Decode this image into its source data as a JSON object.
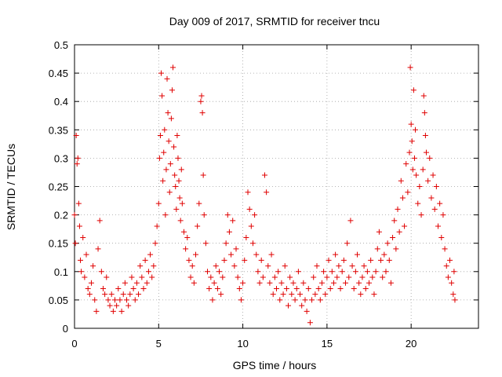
{
  "chart_data": {
    "type": "scatter",
    "title": "Day 009 of 2017, SRMTID for receiver tncu",
    "xlabel": "GPS time / hours",
    "ylabel": "SRMTID / TECUs",
    "xlim": [
      0,
      24
    ],
    "ylim": [
      0,
      0.5
    ],
    "xticks": [
      0,
      5,
      10,
      15,
      20
    ],
    "xtick_labels": [
      "0",
      "5",
      "10",
      "15",
      "20"
    ],
    "yticks": [
      0,
      0.05,
      0.1,
      0.15,
      0.2,
      0.25,
      0.3,
      0.35,
      0.4,
      0.45,
      0.5
    ],
    "ytick_labels": [
      "0",
      "0.05",
      "0.1",
      "0.15",
      "0.2",
      "0.25",
      "0.3",
      "0.35",
      "0.4",
      "0.45",
      "0.5"
    ],
    "grid": true,
    "marker": "+",
    "series": [
      {
        "name": "SRMTID",
        "color": "#e00000",
        "points": [
          [
            0.0,
            0.2
          ],
          [
            0.05,
            0.15
          ],
          [
            0.1,
            0.34
          ],
          [
            0.15,
            0.29
          ],
          [
            0.2,
            0.3
          ],
          [
            0.25,
            0.22
          ],
          [
            0.3,
            0.18
          ],
          [
            0.35,
            0.12
          ],
          [
            0.4,
            0.1
          ],
          [
            0.5,
            0.16
          ],
          [
            0.6,
            0.09
          ],
          [
            0.7,
            0.13
          ],
          [
            0.8,
            0.07
          ],
          [
            0.9,
            0.06
          ],
          [
            1.0,
            0.08
          ],
          [
            1.1,
            0.11
          ],
          [
            1.2,
            0.05
          ],
          [
            1.3,
            0.03
          ],
          [
            1.4,
            0.14
          ],
          [
            1.5,
            0.19
          ],
          [
            1.6,
            0.1
          ],
          [
            1.7,
            0.07
          ],
          [
            1.8,
            0.06
          ],
          [
            1.9,
            0.09
          ],
          [
            2.0,
            0.05
          ],
          [
            2.1,
            0.04
          ],
          [
            2.2,
            0.06
          ],
          [
            2.3,
            0.03
          ],
          [
            2.4,
            0.05
          ],
          [
            2.5,
            0.04
          ],
          [
            2.6,
            0.07
          ],
          [
            2.7,
            0.05
          ],
          [
            2.8,
            0.03
          ],
          [
            2.9,
            0.06
          ],
          [
            3.0,
            0.08
          ],
          [
            3.1,
            0.05
          ],
          [
            3.2,
            0.04
          ],
          [
            3.3,
            0.06
          ],
          [
            3.4,
            0.09
          ],
          [
            3.5,
            0.07
          ],
          [
            3.6,
            0.05
          ],
          [
            3.7,
            0.08
          ],
          [
            3.8,
            0.06
          ],
          [
            3.9,
            0.11
          ],
          [
            4.0,
            0.09
          ],
          [
            4.1,
            0.07
          ],
          [
            4.2,
            0.12
          ],
          [
            4.3,
            0.08
          ],
          [
            4.4,
            0.1
          ],
          [
            4.5,
            0.13
          ],
          [
            4.6,
            0.09
          ],
          [
            4.7,
            0.11
          ],
          [
            4.8,
            0.15
          ],
          [
            4.9,
            0.18
          ],
          [
            5.0,
            0.22
          ],
          [
            5.05,
            0.3
          ],
          [
            5.1,
            0.34
          ],
          [
            5.15,
            0.45
          ],
          [
            5.2,
            0.41
          ],
          [
            5.25,
            0.26
          ],
          [
            5.3,
            0.31
          ],
          [
            5.35,
            0.35
          ],
          [
            5.4,
            0.2
          ],
          [
            5.45,
            0.28
          ],
          [
            5.5,
            0.44
          ],
          [
            5.55,
            0.38
          ],
          [
            5.6,
            0.33
          ],
          [
            5.65,
            0.24
          ],
          [
            5.7,
            0.29
          ],
          [
            5.75,
            0.37
          ],
          [
            5.8,
            0.42
          ],
          [
            5.85,
            0.46
          ],
          [
            5.9,
            0.32
          ],
          [
            5.95,
            0.27
          ],
          [
            6.0,
            0.25
          ],
          [
            6.05,
            0.21
          ],
          [
            6.1,
            0.34
          ],
          [
            6.15,
            0.3
          ],
          [
            6.2,
            0.26
          ],
          [
            6.25,
            0.23
          ],
          [
            6.3,
            0.19
          ],
          [
            6.35,
            0.28
          ],
          [
            6.4,
            0.22
          ],
          [
            6.5,
            0.17
          ],
          [
            6.6,
            0.14
          ],
          [
            6.7,
            0.16
          ],
          [
            6.8,
            0.12
          ],
          [
            6.9,
            0.09
          ],
          [
            7.0,
            0.11
          ],
          [
            7.1,
            0.08
          ],
          [
            7.2,
            0.13
          ],
          [
            7.3,
            0.18
          ],
          [
            7.4,
            0.22
          ],
          [
            7.5,
            0.4
          ],
          [
            7.55,
            0.41
          ],
          [
            7.6,
            0.38
          ],
          [
            7.65,
            0.27
          ],
          [
            7.7,
            0.2
          ],
          [
            7.8,
            0.15
          ],
          [
            7.9,
            0.1
          ],
          [
            8.0,
            0.07
          ],
          [
            8.1,
            0.09
          ],
          [
            8.2,
            0.05
          ],
          [
            8.3,
            0.08
          ],
          [
            8.4,
            0.11
          ],
          [
            8.5,
            0.07
          ],
          [
            8.6,
            0.1
          ],
          [
            8.7,
            0.06
          ],
          [
            8.8,
            0.09
          ],
          [
            8.9,
            0.12
          ],
          [
            9.0,
            0.15
          ],
          [
            9.1,
            0.2
          ],
          [
            9.2,
            0.17
          ],
          [
            9.3,
            0.13
          ],
          [
            9.4,
            0.19
          ],
          [
            9.5,
            0.11
          ],
          [
            9.6,
            0.14
          ],
          [
            9.7,
            0.09
          ],
          [
            9.8,
            0.07
          ],
          [
            9.9,
            0.05
          ],
          [
            10.0,
            0.08
          ],
          [
            10.1,
            0.12
          ],
          [
            10.2,
            0.16
          ],
          [
            10.3,
            0.24
          ],
          [
            10.4,
            0.21
          ],
          [
            10.5,
            0.18
          ],
          [
            10.6,
            0.15
          ],
          [
            10.7,
            0.2
          ],
          [
            10.8,
            0.13
          ],
          [
            10.9,
            0.1
          ],
          [
            11.0,
            0.08
          ],
          [
            11.1,
            0.12
          ],
          [
            11.2,
            0.09
          ],
          [
            11.3,
            0.27
          ],
          [
            11.4,
            0.24
          ],
          [
            11.5,
            0.11
          ],
          [
            11.6,
            0.08
          ],
          [
            11.7,
            0.13
          ],
          [
            11.8,
            0.06
          ],
          [
            11.9,
            0.09
          ],
          [
            12.0,
            0.07
          ],
          [
            12.1,
            0.1
          ],
          [
            12.2,
            0.05
          ],
          [
            12.3,
            0.08
          ],
          [
            12.4,
            0.06
          ],
          [
            12.5,
            0.11
          ],
          [
            12.6,
            0.07
          ],
          [
            12.7,
            0.04
          ],
          [
            12.8,
            0.09
          ],
          [
            12.9,
            0.06
          ],
          [
            13.0,
            0.08
          ],
          [
            13.1,
            0.05
          ],
          [
            13.2,
            0.07
          ],
          [
            13.3,
            0.1
          ],
          [
            13.4,
            0.06
          ],
          [
            13.5,
            0.04
          ],
          [
            13.6,
            0.08
          ],
          [
            13.7,
            0.05
          ],
          [
            13.8,
            0.03
          ],
          [
            13.9,
            0.07
          ],
          [
            14.0,
            0.01
          ],
          [
            14.1,
            0.05
          ],
          [
            14.2,
            0.09
          ],
          [
            14.3,
            0.06
          ],
          [
            14.4,
            0.11
          ],
          [
            14.5,
            0.07
          ],
          [
            14.6,
            0.05
          ],
          [
            14.7,
            0.08
          ],
          [
            14.8,
            0.1
          ],
          [
            14.9,
            0.06
          ],
          [
            15.0,
            0.09
          ],
          [
            15.1,
            0.12
          ],
          [
            15.2,
            0.07
          ],
          [
            15.3,
            0.1
          ],
          [
            15.4,
            0.08
          ],
          [
            15.5,
            0.13
          ],
          [
            15.6,
            0.09
          ],
          [
            15.7,
            0.11
          ],
          [
            15.8,
            0.07
          ],
          [
            15.9,
            0.1
          ],
          [
            16.0,
            0.12
          ],
          [
            16.1,
            0.08
          ],
          [
            16.2,
            0.15
          ],
          [
            16.3,
            0.09
          ],
          [
            16.4,
            0.19
          ],
          [
            16.5,
            0.11
          ],
          [
            16.6,
            0.07
          ],
          [
            16.7,
            0.1
          ],
          [
            16.8,
            0.13
          ],
          [
            16.9,
            0.08
          ],
          [
            17.0,
            0.06
          ],
          [
            17.1,
            0.09
          ],
          [
            17.2,
            0.11
          ],
          [
            17.3,
            0.07
          ],
          [
            17.4,
            0.1
          ],
          [
            17.5,
            0.08
          ],
          [
            17.6,
            0.12
          ],
          [
            17.7,
            0.09
          ],
          [
            17.8,
            0.06
          ],
          [
            17.9,
            0.1
          ],
          [
            18.0,
            0.14
          ],
          [
            18.1,
            0.17
          ],
          [
            18.2,
            0.12
          ],
          [
            18.3,
            0.09
          ],
          [
            18.4,
            0.13
          ],
          [
            18.5,
            0.1
          ],
          [
            18.6,
            0.15
          ],
          [
            18.7,
            0.12
          ],
          [
            18.8,
            0.08
          ],
          [
            18.9,
            0.16
          ],
          [
            19.0,
            0.19
          ],
          [
            19.1,
            0.14
          ],
          [
            19.2,
            0.21
          ],
          [
            19.3,
            0.17
          ],
          [
            19.4,
            0.26
          ],
          [
            19.5,
            0.23
          ],
          [
            19.6,
            0.18
          ],
          [
            19.7,
            0.29
          ],
          [
            19.8,
            0.24
          ],
          [
            19.9,
            0.31
          ],
          [
            19.95,
            0.46
          ],
          [
            20.0,
            0.36
          ],
          [
            20.05,
            0.33
          ],
          [
            20.1,
            0.28
          ],
          [
            20.15,
            0.42
          ],
          [
            20.2,
            0.3
          ],
          [
            20.25,
            0.35
          ],
          [
            20.3,
            0.27
          ],
          [
            20.4,
            0.22
          ],
          [
            20.5,
            0.25
          ],
          [
            20.6,
            0.2
          ],
          [
            20.7,
            0.28
          ],
          [
            20.75,
            0.41
          ],
          [
            20.8,
            0.38
          ],
          [
            20.85,
            0.34
          ],
          [
            20.9,
            0.31
          ],
          [
            21.0,
            0.26
          ],
          [
            21.1,
            0.3
          ],
          [
            21.2,
            0.23
          ],
          [
            21.3,
            0.27
          ],
          [
            21.4,
            0.21
          ],
          [
            21.5,
            0.25
          ],
          [
            21.6,
            0.18
          ],
          [
            21.7,
            0.22
          ],
          [
            21.8,
            0.16
          ],
          [
            21.9,
            0.2
          ],
          [
            22.0,
            0.14
          ],
          [
            22.1,
            0.11
          ],
          [
            22.2,
            0.09
          ],
          [
            22.3,
            0.12
          ],
          [
            22.4,
            0.08
          ],
          [
            22.5,
            0.06
          ],
          [
            22.55,
            0.1
          ],
          [
            22.6,
            0.05
          ]
        ]
      }
    ]
  }
}
